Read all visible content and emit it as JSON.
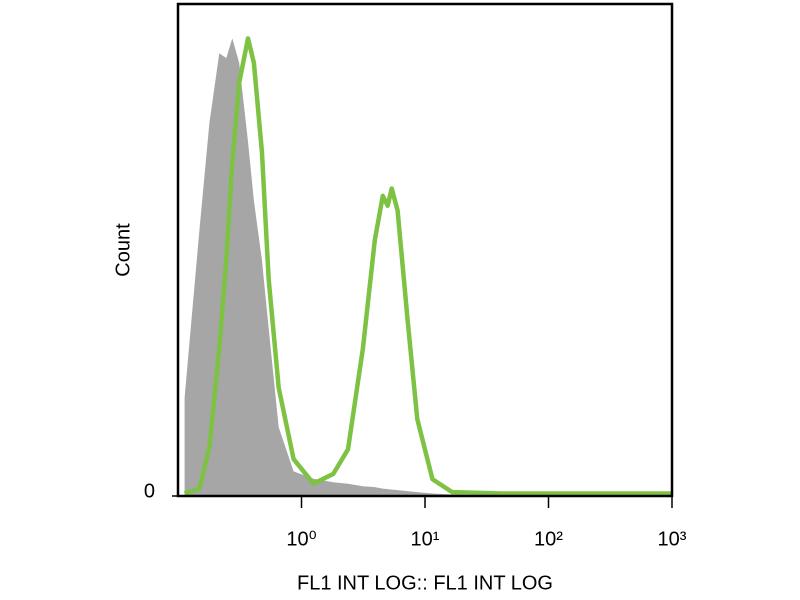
{
  "chart_data": {
    "type": "histogram-overlay",
    "x_label": "FL1 INT LOG:: FL1 INT LOG",
    "y_label": "Count",
    "x_scale": "log",
    "xlim": [
      0.1,
      1000
    ],
    "xticks": [
      {
        "value": 1,
        "label": "10⁰"
      },
      {
        "value": 10,
        "label": "10¹"
      },
      {
        "value": 100,
        "label": "10²"
      },
      {
        "value": 1000,
        "label": "10³"
      }
    ],
    "ylim": [
      0,
      100
    ],
    "yticks": [
      0
    ],
    "x": [
      0.113,
      0.149,
      0.18,
      0.216,
      0.246,
      0.275,
      0.313,
      0.369,
      0.412,
      0.478,
      0.543,
      0.654,
      0.863,
      1.25,
      1.81,
      2.38,
      3.14,
      3.92,
      4.55,
      4.99,
      5.37,
      6.0,
      7.21,
      8.67,
      11.5,
      16.6,
      41.7,
      264,
      1000
    ],
    "series": [
      {
        "style": "area",
        "color": "#a6a6a6",
        "values": [
          20,
          54,
          76,
          90,
          89,
          93,
          88,
          72,
          60,
          48,
          34,
          14,
          5,
          3.5,
          2.8,
          2.5,
          2,
          1.8,
          1.5,
          1.4,
          1.3,
          1.2,
          1,
          0.8,
          0.5,
          0.3,
          0,
          0,
          0
        ]
      },
      {
        "style": "line",
        "color": "#7dc242",
        "values": [
          0.5,
          1.5,
          10,
          30,
          48,
          68,
          84,
          93,
          88,
          70,
          44,
          22,
          7.5,
          2.5,
          4.5,
          9.5,
          30,
          52,
          61,
          59,
          62.5,
          58,
          36,
          15.6,
          3.4,
          0.8,
          0.5,
          0.5,
          0.5
        ]
      }
    ]
  }
}
